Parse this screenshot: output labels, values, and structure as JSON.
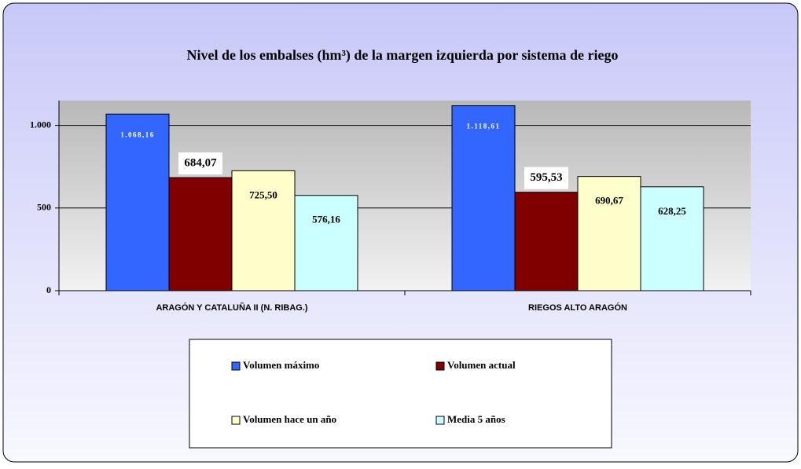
{
  "chart_data": {
    "type": "bar",
    "title": "Nivel de los embalses (hm³) de la margen izquierda por sistema de riego",
    "categories": [
      "ARAGÓN Y CATALUÑA II (N. RIBAG.)",
      "RIEGOS ALTO ARAGÓN"
    ],
    "series": [
      {
        "name": "Volumen máximo",
        "color": "#3366ff",
        "values": [
          1068.16,
          1118.61
        ],
        "value_labels": [
          "1.068,16",
          "1.118,61"
        ]
      },
      {
        "name": "Volumen actual",
        "color": "#800000",
        "values": [
          684.07,
          595.53
        ],
        "value_labels": [
          "684,07",
          "595,53"
        ]
      },
      {
        "name": "Volumen hace un año",
        "color": "#ffffcc",
        "values": [
          725.5,
          690.67
        ],
        "value_labels": [
          "725,50",
          "690,67"
        ]
      },
      {
        "name": "Media 5 años",
        "color": "#ccffff",
        "values": [
          576.16,
          628.25
        ],
        "value_labels": [
          "576,16",
          "628,25"
        ]
      }
    ],
    "ylim": [
      0,
      1150
    ],
    "yticks": [
      0,
      500,
      {
        "value": 1000,
        "label": "1.000"
      }
    ],
    "grid": true
  }
}
